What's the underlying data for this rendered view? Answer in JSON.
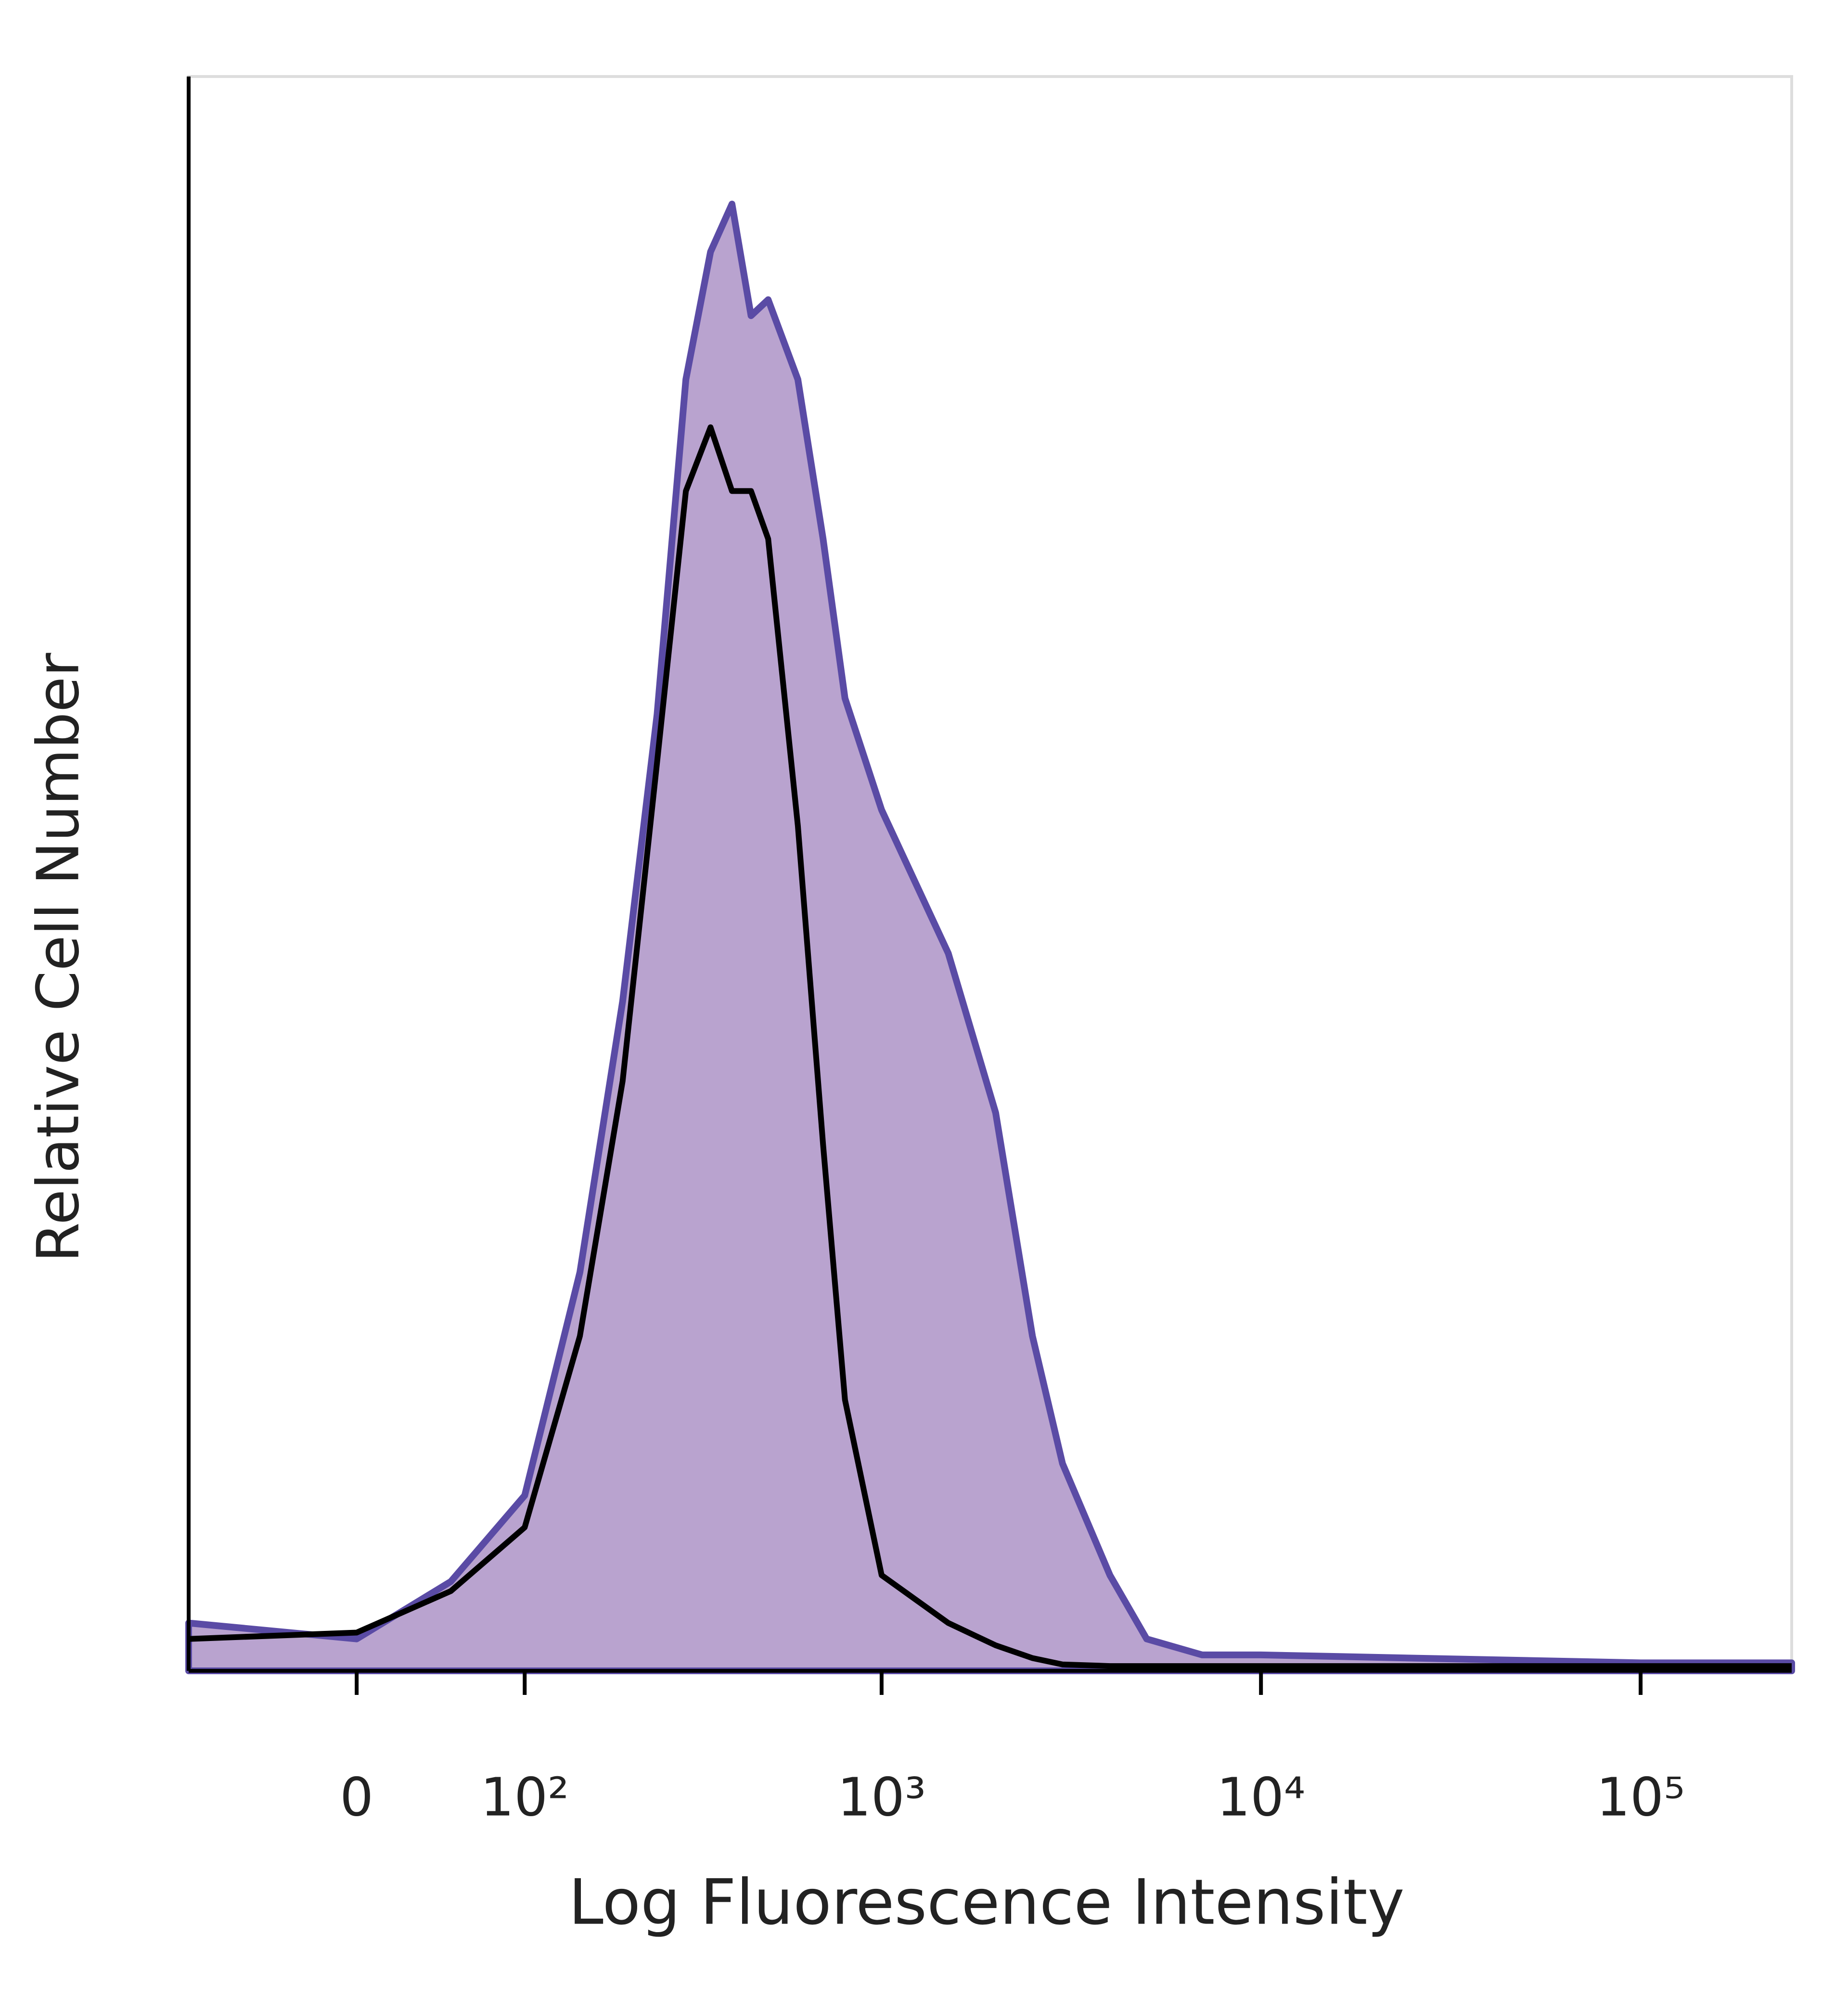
{
  "chart_data": {
    "type": "histogram",
    "xlabel": "Log Fluorescence Intensity",
    "ylabel": "Relative Cell Number",
    "xscale": "arcsinh",
    "xlim": [
      -100,
      250000
    ],
    "ylim": [
      0,
      100
    ],
    "xticks": [
      0,
      {
        "value": 100,
        "label": "10²"
      },
      {
        "value": 1000,
        "label": "10³"
      },
      {
        "value": 10000,
        "label": "10⁴"
      },
      {
        "value": 100000,
        "label": "10⁵"
      }
    ],
    "x": [
      -100,
      0,
      50,
      100,
      150,
      200,
      250,
      300,
      350,
      400,
      450,
      500,
      600,
      700,
      800,
      1000,
      1500,
      2000,
      2500,
      3000,
      4000,
      5000,
      7000,
      10000,
      100000,
      250000
    ],
    "series": [
      {
        "color": "#5a4ba5",
        "fill": "#b9a3cf",
        "filled": true,
        "values": [
          3,
          2,
          5.6,
          11,
          25,
          42,
          60,
          81,
          89,
          92,
          85,
          86,
          81,
          71,
          61,
          54,
          45,
          35,
          21,
          13,
          6,
          2,
          1,
          1,
          0.5,
          0.5
        ]
      },
      {
        "color": "#000000",
        "filled": false,
        "values": [
          2,
          2.4,
          5,
          9,
          21,
          37,
          57,
          74,
          78,
          74,
          74,
          71,
          53,
          33,
          17,
          6,
          3,
          1.6,
          0.8,
          0.4,
          0.3,
          0.3,
          0.3,
          0.3,
          0.3,
          0.3
        ]
      }
    ]
  }
}
